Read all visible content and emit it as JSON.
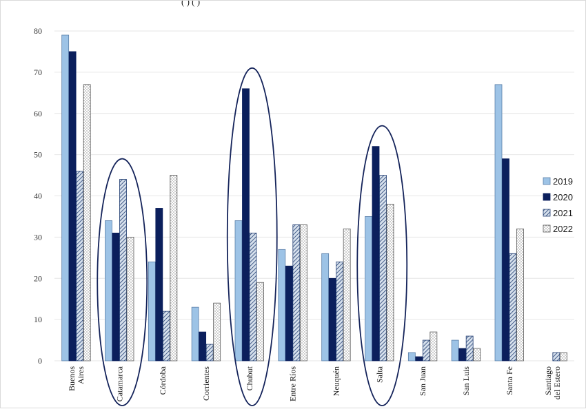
{
  "header_fragment": "(                    )  (                    )",
  "chart_data": {
    "type": "bar",
    "categories": [
      "Buenos Aires",
      "Catamarca",
      "Córdoba",
      "Corrientes",
      "Chubut",
      "Entre Ríos",
      "Neuquén",
      "Salta",
      "San Juan",
      "San Luis",
      "Santa Fe",
      "Santiago del Estero"
    ],
    "category_lines": [
      [
        "Buenos",
        "Aires"
      ],
      [
        "Catamarca"
      ],
      [
        "Córdoba"
      ],
      [
        "Corrientes"
      ],
      [
        "Chubut"
      ],
      [
        "Entre Ríos"
      ],
      [
        "Neuquén"
      ],
      [
        "Salta"
      ],
      [
        "San Juan"
      ],
      [
        "San Luis"
      ],
      [
        "Santa Fe"
      ],
      [
        "Santiago",
        "del Estero"
      ]
    ],
    "series": [
      {
        "name": "2019",
        "values": [
          79,
          34,
          24,
          13,
          34,
          27,
          26,
          35,
          2,
          5,
          67,
          0
        ]
      },
      {
        "name": "2020",
        "values": [
          75,
          31,
          37,
          7,
          66,
          23,
          20,
          52,
          1,
          3,
          49,
          0
        ]
      },
      {
        "name": "2021",
        "values": [
          46,
          44,
          12,
          4,
          31,
          33,
          24,
          45,
          5,
          6,
          26,
          2
        ]
      },
      {
        "name": "2022",
        "values": [
          67,
          30,
          45,
          14,
          19,
          33,
          32,
          38,
          7,
          3,
          32,
          2
        ]
      }
    ],
    "ylim": [
      0,
      80
    ],
    "yticks": [
      0,
      10,
      20,
      30,
      40,
      50,
      60,
      70,
      80
    ],
    "grid": true,
    "legend": "right",
    "highlighted_categories": [
      "Catamarca",
      "Chubut",
      "Salta"
    ],
    "colors": {
      "2019": "#9dc3e6",
      "2020": "#0b1f5c",
      "2021": "#b4c7dc",
      "2022": "#ffffff",
      "ellipse": "#14235a",
      "grid": "#e6e6e6"
    }
  }
}
